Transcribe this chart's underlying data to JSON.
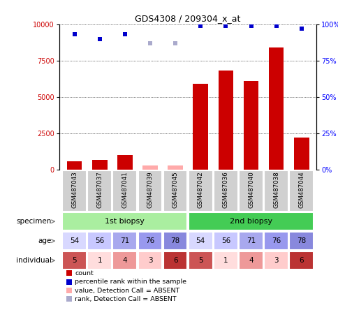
{
  "title": "GDS4308 / 209304_x_at",
  "samples": [
    "GSM487043",
    "GSM487037",
    "GSM487041",
    "GSM487039",
    "GSM487045",
    "GSM487042",
    "GSM487036",
    "GSM487040",
    "GSM487038",
    "GSM487044"
  ],
  "count_values": [
    600,
    700,
    1000,
    0,
    0,
    5900,
    6800,
    6100,
    8400,
    2200
  ],
  "absent_count": [
    0,
    0,
    0,
    300,
    300,
    0,
    0,
    0,
    0,
    0
  ],
  "percentile_values": [
    93,
    90,
    93,
    0,
    0,
    99,
    99,
    99,
    99,
    97
  ],
  "absent_percentile": [
    0,
    0,
    0,
    87,
    87,
    0,
    0,
    0,
    0,
    0
  ],
  "absent_flags": [
    false,
    false,
    false,
    true,
    true,
    false,
    false,
    false,
    false,
    false
  ],
  "specimen_labels": [
    "1st biopsy",
    "2nd biopsy"
  ],
  "specimen_spans": [
    [
      0,
      4
    ],
    [
      5,
      9
    ]
  ],
  "specimen_colors": [
    "#aaeea0",
    "#44cc55"
  ],
  "age_values": [
    54,
    56,
    71,
    76,
    78,
    54,
    56,
    71,
    76,
    78
  ],
  "individual_values": [
    5,
    1,
    4,
    3,
    6,
    5,
    1,
    4,
    3,
    6
  ],
  "age_bg_colors": [
    "#d8d8ff",
    "#c8c8ff",
    "#a8a8ee",
    "#9898ee",
    "#8888dd",
    "#d8d8ff",
    "#c8c8ff",
    "#a8a8ee",
    "#9898ee",
    "#8888dd"
  ],
  "ind_colors": [
    "#cc5555",
    "#ffdddd",
    "#ee9999",
    "#ffcccc",
    "#bb3333",
    "#cc5555",
    "#ffdddd",
    "#ee9999",
    "#ffcccc",
    "#bb3333"
  ],
  "bar_color_present": "#cc0000",
  "bar_color_absent": "#ffaaaa",
  "dot_color_present": "#0000cc",
  "dot_color_absent": "#aaaacc",
  "ylim_left": [
    0,
    10000
  ],
  "ylim_right": [
    0,
    100
  ],
  "yticks_left": [
    0,
    2500,
    5000,
    7500,
    10000
  ],
  "yticks_right": [
    0,
    25,
    50,
    75,
    100
  ],
  "yticklabels_left": [
    "0",
    "2500",
    "5000",
    "7500",
    "10000"
  ],
  "yticklabels_right": [
    "0%",
    "25%",
    "50%",
    "75%",
    "100%"
  ],
  "legend_items": [
    {
      "color": "#cc0000",
      "label": "count"
    },
    {
      "color": "#0000cc",
      "label": "percentile rank within the sample"
    },
    {
      "color": "#ffaaaa",
      "label": "value, Detection Call = ABSENT"
    },
    {
      "color": "#aaaacc",
      "label": "rank, Detection Call = ABSENT"
    }
  ]
}
